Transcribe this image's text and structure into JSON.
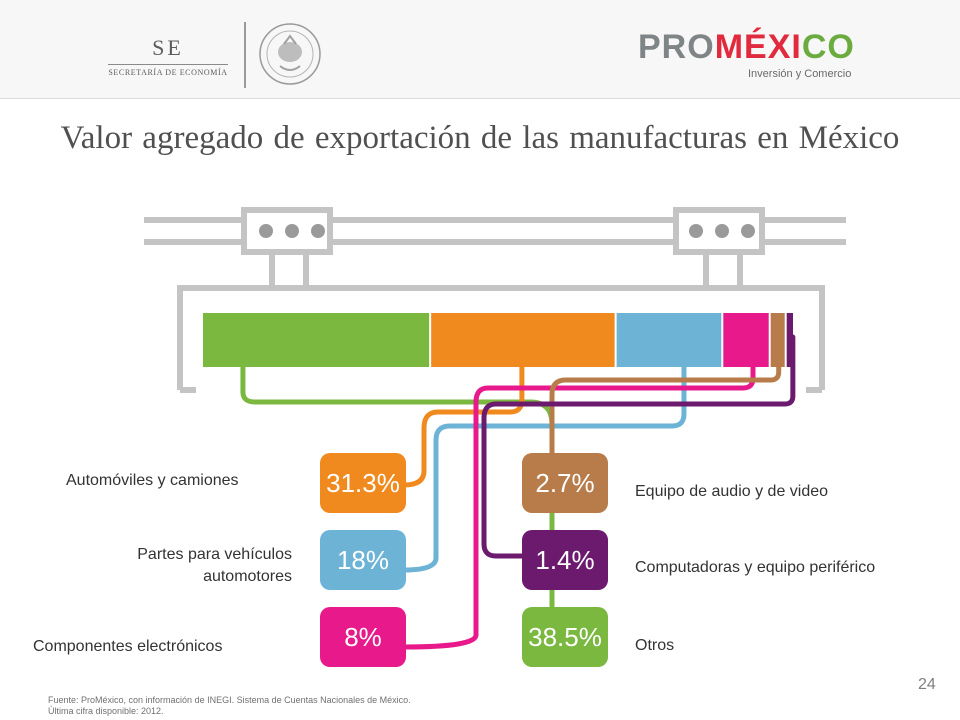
{
  "header": {
    "se_mark": "SE",
    "se_sub": "SECRETARÍA DE ECONOMÍA",
    "promexico_pro": "PRO",
    "promexico_mex": "MÉXI",
    "promexico_co": "CO",
    "promexico_sub": "Inversión y Comercio"
  },
  "title": "Valor agregado de exportación de las manufacturas en México",
  "chart_data": {
    "type": "bar",
    "orientation": "stacked-horizontal",
    "title": "Valor agregado de exportación de las manufacturas en México",
    "unit": "%",
    "segments": [
      {
        "label": "Otros",
        "value": 38.5,
        "display": "38.5%",
        "color": "#7ab83f"
      },
      {
        "label": "Automóviles y camiones",
        "value": 31.3,
        "display": "31.3%",
        "color": "#f08a1e"
      },
      {
        "label": "Partes para vehículos automotores",
        "value": 18,
        "display": "18%",
        "color": "#6db3d6"
      },
      {
        "label": "Componentes electrónicos",
        "value": 8,
        "display": "8%",
        "color": "#e8198b"
      },
      {
        "label": "Equipo de audio y de video",
        "value": 2.7,
        "display": "2.7%",
        "color": "#b87c4a"
      },
      {
        "label": "Computadoras y equipo periférico",
        "value": 1.4,
        "display": "1.4%",
        "color": "#6b1a6e"
      }
    ]
  },
  "labels": {
    "automoviles": "Automóviles y camiones",
    "partes_1": "Partes para vehículos",
    "partes_2": "automotores",
    "componentes": "Componentes electrónicos",
    "audio": "Equipo de audio y de video",
    "computadoras": "Computadoras y equipo periférico",
    "otros": "Otros"
  },
  "footnote": {
    "line1": "Fuente: ProMéxico, con información de INEGI. Sistema de Cuentas Nacionales de México.",
    "line2": "Última cifra disponible: 2012."
  },
  "page_number": "24"
}
